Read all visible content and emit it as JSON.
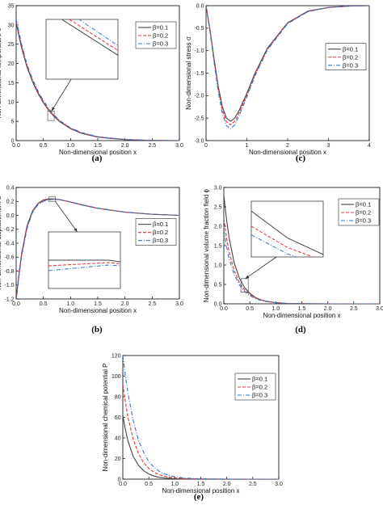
{
  "colors": {
    "beta_0_1": "#444444",
    "beta_0_2": "#e8333a",
    "beta_0_3": "#2f77c9",
    "axis": "#000000"
  },
  "chart_data": [
    {
      "id": "a",
      "type": "line",
      "caption": "(a)",
      "xlabel": "Non-dimensional position x",
      "ylabel": "Non-dimensional temperature θ",
      "xlim": [
        0,
        3
      ],
      "ylim": [
        0,
        35
      ],
      "xticks": [
        "0.0",
        "0.5",
        "1.0",
        "1.5",
        "2.0",
        "2.5",
        "3.0"
      ],
      "yticks": [
        "0",
        "5",
        "10",
        "15",
        "20",
        "25",
        "30",
        "35"
      ],
      "legend": {
        "position": "top-right",
        "entries": [
          "β=0.1",
          "β=0.2",
          "β=0.3"
        ]
      },
      "x": [
        0,
        0.1,
        0.2,
        0.3,
        0.4,
        0.5,
        0.6,
        0.7,
        0.8,
        1.0,
        1.2,
        1.5,
        2.0,
        2.5,
        3.0
      ],
      "series": [
        {
          "name": "β=0.1",
          "style": "solid",
          "values": [
            30.5,
            24.0,
            19.0,
            15.3,
            12.3,
            9.8,
            7.8,
            6.2,
            4.9,
            3.1,
            1.9,
            0.9,
            0.25,
            0.05,
            0.0
          ]
        },
        {
          "name": "β=0.2",
          "style": "dash",
          "values": [
            31.0,
            24.5,
            19.4,
            15.6,
            12.6,
            10.1,
            8.0,
            6.4,
            5.1,
            3.2,
            2.0,
            1.0,
            0.28,
            0.06,
            0.0
          ]
        },
        {
          "name": "β=0.3",
          "style": "dashdot",
          "values": [
            31.5,
            25.0,
            19.8,
            16.0,
            12.9,
            10.4,
            8.3,
            6.6,
            5.2,
            3.3,
            2.1,
            1.0,
            0.3,
            0.07,
            0.0
          ]
        }
      ],
      "inset": {
        "roi_x": [
          0.58,
          0.7
        ],
        "roi_y": [
          5.2,
          7.7
        ]
      }
    },
    {
      "id": "c",
      "type": "line",
      "caption": "(c)",
      "xlabel": "Non-dimensional position x",
      "ylabel": "Non-dimensional stress σ",
      "xlim": [
        0,
        4
      ],
      "ylim": [
        -3.0,
        0
      ],
      "xticks": [
        "0",
        "1",
        "2",
        "3",
        "4"
      ],
      "yticks": [
        "0.0",
        "-0.5",
        "-1.0",
        "-1.5",
        "-2.0",
        "-2.5",
        "-3.0"
      ],
      "legend": {
        "position": "middle-right",
        "entries": [
          "β=0.1",
          "β=0.2",
          "β=0.3"
        ]
      },
      "x": [
        0,
        0.1,
        0.2,
        0.3,
        0.4,
        0.5,
        0.6,
        0.7,
        0.8,
        1.0,
        1.2,
        1.5,
        2.0,
        2.5,
        3.0,
        3.5,
        4.0
      ],
      "series": [
        {
          "name": "β=0.1",
          "style": "solid",
          "values": [
            0,
            -0.55,
            -1.2,
            -1.8,
            -2.25,
            -2.5,
            -2.57,
            -2.5,
            -2.35,
            -1.95,
            -1.5,
            -0.95,
            -0.38,
            -0.12,
            -0.04,
            -0.01,
            0
          ]
        },
        {
          "name": "β=0.2",
          "style": "dash",
          "values": [
            0,
            -0.57,
            -1.24,
            -1.85,
            -2.32,
            -2.58,
            -2.65,
            -2.57,
            -2.41,
            -1.99,
            -1.53,
            -0.97,
            -0.39,
            -0.13,
            -0.04,
            -0.01,
            0
          ]
        },
        {
          "name": "β=0.3",
          "style": "dashdot",
          "values": [
            0,
            -0.6,
            -1.28,
            -1.92,
            -2.4,
            -2.67,
            -2.74,
            -2.65,
            -2.47,
            -2.03,
            -1.56,
            -0.99,
            -0.4,
            -0.13,
            -0.04,
            -0.01,
            0
          ]
        }
      ]
    },
    {
      "id": "b",
      "type": "line",
      "caption": "(b)",
      "xlabel": "Non-dimensional position x",
      "ylabel": "Non-dimensional displacement u",
      "xlim": [
        0,
        3
      ],
      "ylim": [
        -1.2,
        0.4
      ],
      "xticks": [
        "0.0",
        "0.5",
        "1.0",
        "1.5",
        "2.0",
        "2.5",
        "3.0"
      ],
      "yticks": [
        "0.4",
        "0.2",
        "0.0",
        "-0.2",
        "-0.4",
        "-0.6",
        "-0.8",
        "-1.0",
        "-1.2"
      ],
      "legend": {
        "position": "middle-right",
        "entries": [
          "β=0.1",
          "β=0.2",
          "β=0.3"
        ]
      },
      "x": [
        0,
        0.05,
        0.1,
        0.2,
        0.3,
        0.4,
        0.5,
        0.6,
        0.7,
        0.8,
        1.0,
        1.2,
        1.5,
        2.0,
        2.5,
        3.0
      ],
      "series": [
        {
          "name": "β=0.1",
          "style": "solid",
          "values": [
            -1.2,
            -0.85,
            -0.55,
            -0.15,
            0.06,
            0.17,
            0.22,
            0.235,
            0.235,
            0.225,
            0.19,
            0.15,
            0.1,
            0.045,
            0.015,
            0.0
          ]
        },
        {
          "name": "β=0.2",
          "style": "dash",
          "values": [
            -1.22,
            -0.87,
            -0.57,
            -0.17,
            0.05,
            0.16,
            0.21,
            0.228,
            0.232,
            0.225,
            0.192,
            0.152,
            0.102,
            0.046,
            0.016,
            0.0
          ]
        },
        {
          "name": "β=0.3",
          "style": "dashdot",
          "values": [
            -1.24,
            -0.89,
            -0.59,
            -0.19,
            0.04,
            0.15,
            0.2,
            0.222,
            0.229,
            0.224,
            0.193,
            0.154,
            0.104,
            0.047,
            0.016,
            0.0
          ]
        }
      ],
      "inset": {
        "roi_x": [
          0.6,
          0.72
        ],
        "roi_y": [
          0.2,
          0.27
        ]
      }
    },
    {
      "id": "d",
      "type": "line",
      "caption": "(d)",
      "xlabel": "Non-dimensional position x",
      "ylabel": "Non-dimensional volume fraction field ϕ",
      "xlim": [
        0,
        3
      ],
      "ylim": [
        0,
        3.0
      ],
      "xticks": [
        "0.0",
        "0.5",
        "1.0",
        "1.5",
        "2.0",
        "2.5",
        "3.0"
      ],
      "yticks": [
        "0.0",
        "0.5",
        "1.0",
        "1.5",
        "2.0",
        "2.5",
        "3.0"
      ],
      "legend": {
        "position": "top-right",
        "entries": [
          "β=0.1",
          "β=0.2",
          "β=0.3"
        ]
      },
      "x": [
        0,
        0.05,
        0.1,
        0.2,
        0.3,
        0.4,
        0.5,
        0.6,
        0.7,
        0.8,
        1.0,
        1.2,
        1.5,
        2.0,
        2.5,
        3.0
      ],
      "series": [
        {
          "name": "β=0.1",
          "style": "solid",
          "values": [
            2.8,
            2.2,
            1.72,
            1.05,
            0.66,
            0.42,
            0.27,
            0.17,
            0.11,
            0.07,
            0.03,
            0.012,
            0.004,
            0.0,
            0.0,
            0.0
          ]
        },
        {
          "name": "β=0.2",
          "style": "dash",
          "values": [
            2.2,
            1.72,
            1.35,
            0.85,
            0.55,
            0.36,
            0.24,
            0.16,
            0.1,
            0.065,
            0.028,
            0.012,
            0.004,
            0.0,
            0.0,
            0.0
          ]
        },
        {
          "name": "β=0.3",
          "style": "dashdot",
          "values": [
            1.9,
            1.5,
            1.18,
            0.75,
            0.49,
            0.32,
            0.21,
            0.14,
            0.09,
            0.06,
            0.026,
            0.011,
            0.003,
            0.0,
            0.0,
            0.0
          ]
        }
      ],
      "inset": {
        "roi_x": [
          0.33,
          0.47
        ],
        "roi_y": [
          0.3,
          0.65
        ]
      }
    },
    {
      "id": "e",
      "type": "line",
      "caption": "(e)",
      "xlabel": "Non-dimensional position x",
      "ylabel": "Non-dimensional chemical potential P",
      "xlim": [
        0,
        3
      ],
      "ylim": [
        0,
        120
      ],
      "xticks": [
        "0.0",
        "0.5",
        "1.0",
        "1.5",
        "2.0",
        "2.5",
        "3.0"
      ],
      "yticks": [
        "0",
        "20",
        "40",
        "60",
        "80",
        "100",
        "120"
      ],
      "legend": {
        "position": "top-right",
        "entries": [
          "β=0.1",
          "β=0.2",
          "β=0.3"
        ]
      },
      "x": [
        0,
        0.05,
        0.1,
        0.2,
        0.3,
        0.4,
        0.5,
        0.6,
        0.7,
        0.8,
        1.0,
        1.2,
        1.5,
        2.0,
        2.5,
        3.0
      ],
      "series": [
        {
          "name": "β=0.1",
          "style": "solid",
          "values": [
            62,
            48,
            37,
            22,
            13.5,
            8.2,
            5.0,
            3.0,
            1.8,
            1.1,
            0.4,
            0.15,
            0.05,
            0.0,
            0.0,
            0.0
          ]
        },
        {
          "name": "β=0.2",
          "style": "dash",
          "values": [
            92,
            75,
            60,
            39,
            25,
            16,
            10.4,
            6.7,
            4.3,
            2.8,
            1.2,
            0.5,
            0.15,
            0.0,
            0.0,
            0.0
          ]
        },
        {
          "name": "β=0.3",
          "style": "dashdot",
          "values": [
            120,
            100,
            83,
            57,
            38,
            26,
            17,
            11.5,
            7.6,
            5.0,
            2.2,
            1.0,
            0.3,
            0.05,
            0.0,
            0.0
          ]
        }
      ]
    }
  ]
}
